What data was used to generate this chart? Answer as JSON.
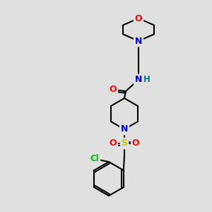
{
  "bg_color": "#e0e0e0",
  "atom_colors": {
    "C": "#000000",
    "N": "#0000cc",
    "O": "#ff0000",
    "S": "#cccc00",
    "Cl": "#00bb00",
    "H": "#008080"
  },
  "bond_color": "#000000",
  "figsize": [
    3.0,
    3.0
  ],
  "dpi": 100
}
